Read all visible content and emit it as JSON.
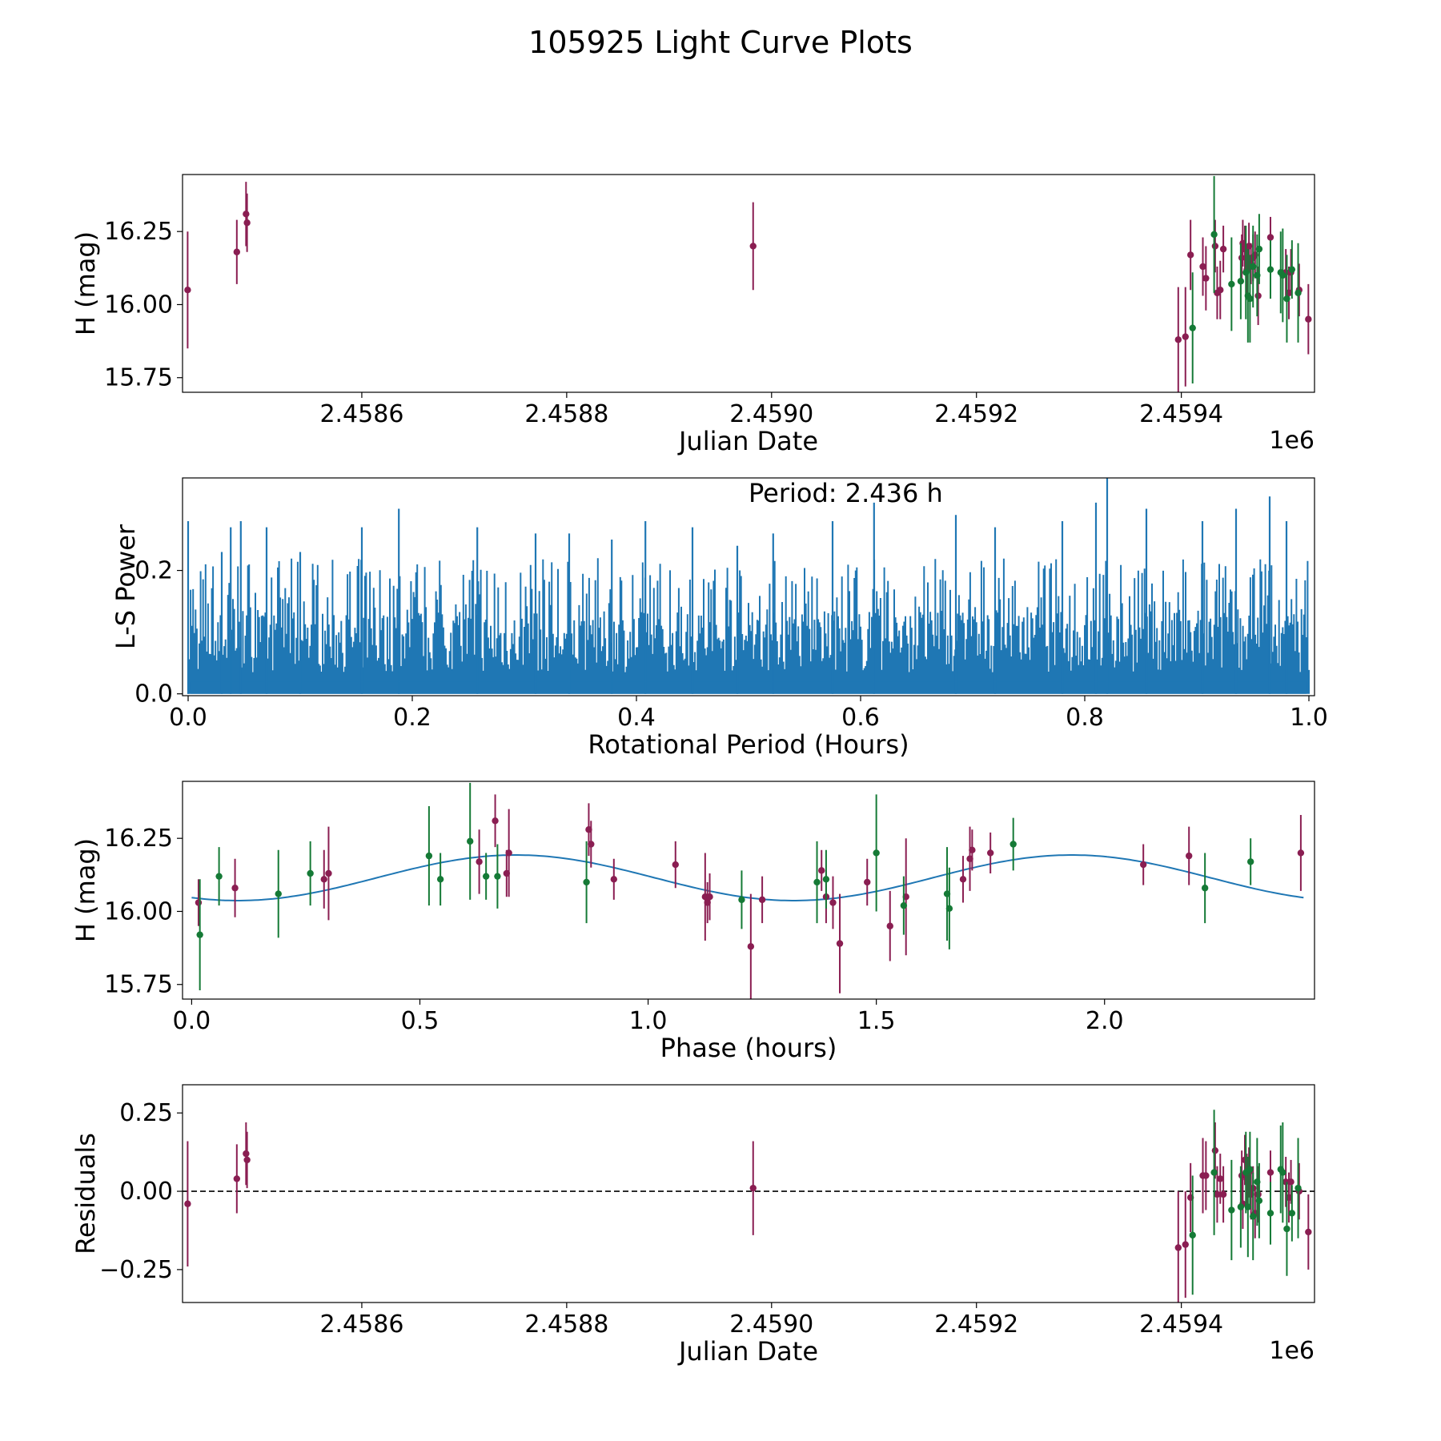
{
  "figure": {
    "title": "105925 Light Curve Plots"
  },
  "colors": {
    "red_series": "#8a1e52",
    "green_series": "#157a36",
    "periodogram": "#1f77b4",
    "fit_curve": "#1f77b4",
    "zero_line": "#000000"
  },
  "chart_data": [
    {
      "type": "scatter",
      "id": "light-curve",
      "title": "",
      "xlabel": "Julian Date",
      "ylabel": "H (mag)",
      "x_offset_label": "1e6",
      "xlim": [
        2458425,
        2459530
      ],
      "ylim": [
        15.7,
        16.445
      ],
      "xticks": [
        2458600,
        2458800,
        2459000,
        2459200,
        2459400
      ],
      "xtick_labels": [
        "2.4586",
        "2.4588",
        "2.4590",
        "2.4592",
        "2.4594"
      ],
      "yticks": [
        15.75,
        16.0,
        16.25
      ],
      "ytick_labels": [
        "15.75",
        "16.00",
        "16.25"
      ],
      "series": [
        {
          "name": "red",
          "color": "#8a1e52",
          "points": [
            [
              2458430,
              16.05,
              0.2
            ],
            [
              2458478,
              16.18,
              0.11
            ],
            [
              2458487,
              16.31,
              0.11
            ],
            [
              2458488,
              16.28,
              0.1
            ],
            [
              2458982,
              16.2,
              0.15
            ],
            [
              2459397,
              15.88,
              0.18
            ],
            [
              2459404,
              15.89,
              0.17
            ],
            [
              2459409,
              16.17,
              0.12
            ],
            [
              2459421,
              16.13,
              0.1
            ],
            [
              2459424,
              16.09,
              0.11
            ],
            [
              2459433,
              16.2,
              0.09
            ],
            [
              2459435,
              16.04,
              0.09
            ],
            [
              2459438,
              16.05,
              0.1
            ],
            [
              2459441,
              16.19,
              0.08
            ],
            [
              2459459,
              16.16,
              0.08
            ],
            [
              2459460,
              16.21,
              0.08
            ],
            [
              2459462,
              16.19,
              0.08
            ],
            [
              2459464,
              16.12,
              0.08
            ],
            [
              2459466,
              16.2,
              0.08
            ],
            [
              2459468,
              16.14,
              0.07
            ],
            [
              2459470,
              16.16,
              0.08
            ],
            [
              2459472,
              16.17,
              0.08
            ],
            [
              2459475,
              16.03,
              0.1
            ],
            [
              2459487,
              16.23,
              0.07
            ],
            [
              2459502,
              16.11,
              0.08
            ],
            [
              2459505,
              16.04,
              0.09
            ],
            [
              2459507,
              16.11,
              0.08
            ],
            [
              2459515,
              16.05,
              0.09
            ],
            [
              2459524,
              15.95,
              0.12
            ]
          ]
        },
        {
          "name": "green",
          "color": "#157a36",
          "points": [
            [
              2459411,
              15.92,
              0.19
            ],
            [
              2459432,
              16.24,
              0.2
            ],
            [
              2459449,
              16.07,
              0.16
            ],
            [
              2459458,
              16.08,
              0.13
            ],
            [
              2459463,
              16.11,
              0.16
            ],
            [
              2459465,
              16.03,
              0.16
            ],
            [
              2459467,
              16.02,
              0.15
            ],
            [
              2459470,
              16.13,
              0.14
            ],
            [
              2459474,
              16.1,
              0.14
            ],
            [
              2459476,
              16.19,
              0.12
            ],
            [
              2459487,
              16.12,
              0.1
            ],
            [
              2459497,
              16.11,
              0.14
            ],
            [
              2459499,
              16.1,
              0.16
            ],
            [
              2459503,
              16.02,
              0.15
            ],
            [
              2459508,
              16.12,
              0.1
            ],
            [
              2459514,
              16.04,
              0.17
            ]
          ]
        }
      ]
    },
    {
      "type": "line",
      "id": "periodogram",
      "title": "",
      "annotation": "Period: 2.436 h",
      "xlabel": "Rotational Period (Hours)",
      "ylabel": "L-S Power",
      "xlim": [
        -0.005,
        1.005
      ],
      "ylim": [
        -0.003,
        0.35
      ],
      "xticks": [
        0.0,
        0.2,
        0.4,
        0.6,
        0.8,
        1.0
      ],
      "xtick_labels": [
        "0.0",
        "0.2",
        "0.4",
        "0.6",
        "0.8",
        "1.0"
      ],
      "yticks": [
        0.0,
        0.2
      ],
      "ytick_labels": [
        "0.0",
        "0.2"
      ],
      "series": [
        {
          "name": "L-S power",
          "color": "#1f77b4",
          "description_of_shape": "dense noise-like periodogram spanning 0 to 1 h",
          "typical_envelope": 0.15,
          "peaks": [
            [
              0.0,
              0.28
            ],
            [
              0.03,
              0.23
            ],
            [
              0.038,
              0.27
            ],
            [
              0.047,
              0.28
            ],
            [
              0.07,
              0.27
            ],
            [
              0.1,
              0.23
            ],
            [
              0.155,
              0.27
            ],
            [
              0.188,
              0.3
            ],
            [
              0.258,
              0.27
            ],
            [
              0.31,
              0.26
            ],
            [
              0.34,
              0.26
            ],
            [
              0.378,
              0.25
            ],
            [
              0.408,
              0.28
            ],
            [
              0.45,
              0.27
            ],
            [
              0.49,
              0.24
            ],
            [
              0.522,
              0.26
            ],
            [
              0.575,
              0.28
            ],
            [
              0.612,
              0.31
            ],
            [
              0.685,
              0.29
            ],
            [
              0.72,
              0.27
            ],
            [
              0.78,
              0.28
            ],
            [
              0.81,
              0.31
            ],
            [
              0.82,
              0.35
            ],
            [
              0.855,
              0.3
            ],
            [
              0.905,
              0.28
            ],
            [
              0.935,
              0.3
            ],
            [
              0.965,
              0.32
            ],
            [
              0.98,
              0.28
            ]
          ]
        }
      ]
    },
    {
      "type": "scatter",
      "id": "phase-folded",
      "title": "",
      "xlabel": "Phase (hours)",
      "ylabel": "H (mag)",
      "xlim": [
        -0.02,
        2.46
      ],
      "ylim": [
        15.7,
        16.445
      ],
      "xticks": [
        0.0,
        0.5,
        1.0,
        1.5,
        2.0
      ],
      "xtick_labels": [
        "0.0",
        "0.5",
        "1.0",
        "1.5",
        "2.0"
      ],
      "yticks": [
        15.75,
        16.0,
        16.25
      ],
      "ytick_labels": [
        "15.75",
        "16.00",
        "16.25"
      ],
      "fit": {
        "name": "sinusoidal fit",
        "color": "#1f77b4",
        "mean": 16.115,
        "amplitude": 0.078,
        "period_hours": 1.218,
        "peak_phase": 0.71,
        "x_range": [
          0.0,
          2.436
        ]
      },
      "series": [
        {
          "name": "red",
          "color": "#8a1e52",
          "points": [
            [
              0.015,
              16.03,
              0.08
            ],
            [
              0.095,
              16.08,
              0.1
            ],
            [
              0.29,
              16.11,
              0.1
            ],
            [
              0.3,
              16.13,
              0.16
            ],
            [
              0.63,
              16.17,
              0.11
            ],
            [
              0.665,
              16.31,
              0.09
            ],
            [
              0.69,
              16.13,
              0.08
            ],
            [
              0.695,
              16.2,
              0.15
            ],
            [
              0.87,
              16.28,
              0.09
            ],
            [
              0.875,
              16.23,
              0.08
            ],
            [
              0.925,
              16.11,
              0.07
            ],
            [
              1.06,
              16.16,
              0.08
            ],
            [
              1.125,
              16.05,
              0.15
            ],
            [
              1.13,
              16.03,
              0.07
            ],
            [
              1.135,
              16.05,
              0.08
            ],
            [
              1.225,
              15.88,
              0.18
            ],
            [
              1.25,
              16.04,
              0.08
            ],
            [
              1.38,
              16.14,
              0.07
            ],
            [
              1.39,
              16.05,
              0.09
            ],
            [
              1.405,
              16.03,
              0.09
            ],
            [
              1.42,
              15.89,
              0.17
            ],
            [
              1.48,
              16.1,
              0.08
            ],
            [
              1.53,
              15.95,
              0.12
            ],
            [
              1.565,
              16.05,
              0.2
            ],
            [
              1.69,
              16.11,
              0.08
            ],
            [
              1.705,
              16.18,
              0.11
            ],
            [
              1.71,
              16.21,
              0.07
            ],
            [
              1.75,
              16.2,
              0.07
            ],
            [
              2.085,
              16.16,
              0.07
            ],
            [
              2.185,
              16.19,
              0.1
            ],
            [
              2.43,
              16.2,
              0.13
            ]
          ]
        },
        {
          "name": "green",
          "color": "#157a36",
          "points": [
            [
              0.018,
              15.92,
              0.19
            ],
            [
              0.06,
              16.12,
              0.1
            ],
            [
              0.19,
              16.06,
              0.15
            ],
            [
              0.26,
              16.13,
              0.11
            ],
            [
              0.52,
              16.19,
              0.17
            ],
            [
              0.545,
              16.11,
              0.09
            ],
            [
              0.61,
              16.24,
              0.2
            ],
            [
              0.645,
              16.12,
              0.08
            ],
            [
              0.67,
              16.12,
              0.11
            ],
            [
              0.865,
              16.1,
              0.14
            ],
            [
              1.205,
              16.04,
              0.1
            ],
            [
              1.37,
              16.1,
              0.14
            ],
            [
              1.39,
              16.11,
              0.1
            ],
            [
              1.5,
              16.2,
              0.2
            ],
            [
              1.56,
              16.02,
              0.1
            ],
            [
              1.655,
              16.06,
              0.16
            ],
            [
              1.66,
              16.01,
              0.14
            ],
            [
              1.8,
              16.23,
              0.09
            ],
            [
              2.22,
              16.08,
              0.12
            ],
            [
              2.32,
              16.17,
              0.08
            ]
          ]
        }
      ]
    },
    {
      "type": "scatter",
      "id": "residuals",
      "title": "",
      "xlabel": "Julian Date",
      "ylabel": "Residuals",
      "x_offset_label": "1e6",
      "xlim": [
        2458425,
        2459530
      ],
      "ylim": [
        -0.355,
        0.34
      ],
      "reference_line": 0.0,
      "xticks": [
        2458600,
        2458800,
        2459000,
        2459200,
        2459400
      ],
      "xtick_labels": [
        "2.4586",
        "2.4588",
        "2.4590",
        "2.4592",
        "2.4594"
      ],
      "yticks": [
        -0.25,
        0.0,
        0.25
      ],
      "ytick_labels": [
        "−0.25",
        "0.00",
        "0.25"
      ],
      "series": [
        {
          "name": "red",
          "color": "#8a1e52",
          "points": [
            [
              2458430,
              -0.04,
              0.2
            ],
            [
              2458478,
              0.04,
              0.11
            ],
            [
              2458487,
              0.12,
              0.1
            ],
            [
              2458488,
              0.1,
              0.09
            ],
            [
              2458982,
              0.01,
              0.15
            ],
            [
              2459397,
              -0.18,
              0.18
            ],
            [
              2459404,
              -0.17,
              0.17
            ],
            [
              2459409,
              -0.02,
              0.11
            ],
            [
              2459421,
              0.05,
              0.12
            ],
            [
              2459424,
              0.05,
              0.11
            ],
            [
              2459433,
              0.13,
              0.09
            ],
            [
              2459435,
              -0.01,
              0.09
            ],
            [
              2459438,
              0.04,
              0.08
            ],
            [
              2459441,
              -0.01,
              0.09
            ],
            [
              2459459,
              0.05,
              0.08
            ],
            [
              2459460,
              -0.04,
              0.08
            ],
            [
              2459462,
              0.1,
              0.08
            ],
            [
              2459464,
              0.04,
              0.08
            ],
            [
              2459466,
              0.06,
              0.08
            ],
            [
              2459468,
              -0.01,
              0.08
            ],
            [
              2459470,
              0.01,
              0.07
            ],
            [
              2459472,
              -0.07,
              0.08
            ],
            [
              2459475,
              -0.01,
              0.09
            ],
            [
              2459487,
              0.06,
              0.07
            ],
            [
              2459502,
              0.03,
              0.08
            ],
            [
              2459505,
              -0.02,
              0.08
            ],
            [
              2459507,
              0.03,
              0.07
            ],
            [
              2459515,
              0.0,
              0.09
            ],
            [
              2459524,
              -0.13,
              0.12
            ]
          ]
        },
        {
          "name": "green",
          "color": "#157a36",
          "points": [
            [
              2459411,
              -0.14,
              0.19
            ],
            [
              2459432,
              0.06,
              0.2
            ],
            [
              2459449,
              -0.06,
              0.16
            ],
            [
              2459458,
              -0.05,
              0.13
            ],
            [
              2459463,
              0.06,
              0.13
            ],
            [
              2459465,
              -0.05,
              0.16
            ],
            [
              2459467,
              0.07,
              0.12
            ],
            [
              2459470,
              -0.08,
              0.14
            ],
            [
              2459474,
              0.03,
              0.14
            ],
            [
              2459476,
              -0.03,
              0.12
            ],
            [
              2459487,
              -0.07,
              0.1
            ],
            [
              2459497,
              0.07,
              0.14
            ],
            [
              2459499,
              0.06,
              0.16
            ],
            [
              2459503,
              -0.12,
              0.15
            ],
            [
              2459508,
              -0.07,
              0.09
            ],
            [
              2459514,
              0.01,
              0.16
            ]
          ]
        }
      ]
    }
  ]
}
